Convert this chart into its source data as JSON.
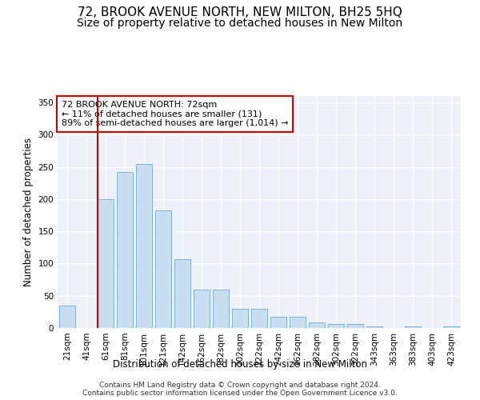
{
  "title": "72, BROOK AVENUE NORTH, NEW MILTON, BH25 5HQ",
  "subtitle": "Size of property relative to detached houses in New Milton",
  "xlabel": "Distribution of detached houses by size in New Milton",
  "ylabel": "Number of detached properties",
  "bins": [
    "21sqm",
    "41sqm",
    "61sqm",
    "81sqm",
    "101sqm",
    "121sqm",
    "142sqm",
    "162sqm",
    "182sqm",
    "202sqm",
    "222sqm",
    "242sqm",
    "262sqm",
    "282sqm",
    "302sqm",
    "322sqm",
    "343sqm",
    "363sqm",
    "383sqm",
    "403sqm",
    "423sqm"
  ],
  "values": [
    35,
    0,
    200,
    242,
    255,
    183,
    107,
    59,
    59,
    30,
    30,
    18,
    18,
    9,
    6,
    6,
    3,
    0,
    3,
    0,
    3
  ],
  "bar_color": "#c9ddf0",
  "bar_edge_color": "#7ab4d8",
  "red_line_index": 2,
  "red_line_color": "#cc0000",
  "annotation_line1": "72 BROOK AVENUE NORTH: 72sqm",
  "annotation_line2": "← 11% of detached houses are smaller (131)",
  "annotation_line3": "89% of semi-detached houses are larger (1,014) →",
  "annotation_box_edge": "#cc0000",
  "ylim": [
    0,
    360
  ],
  "yticks": [
    0,
    50,
    100,
    150,
    200,
    250,
    300,
    350
  ],
  "background_color": "#eef2f8",
  "footer_line1": "Contains HM Land Registry data © Crown copyright and database right 2024.",
  "footer_line2": "Contains public sector information licensed under the Open Government Licence v3.0.",
  "title_fontsize": 11,
  "subtitle_fontsize": 10,
  "axis_label_fontsize": 8.5,
  "tick_fontsize": 7.5,
  "annotation_fontsize": 8,
  "footer_fontsize": 6.5
}
